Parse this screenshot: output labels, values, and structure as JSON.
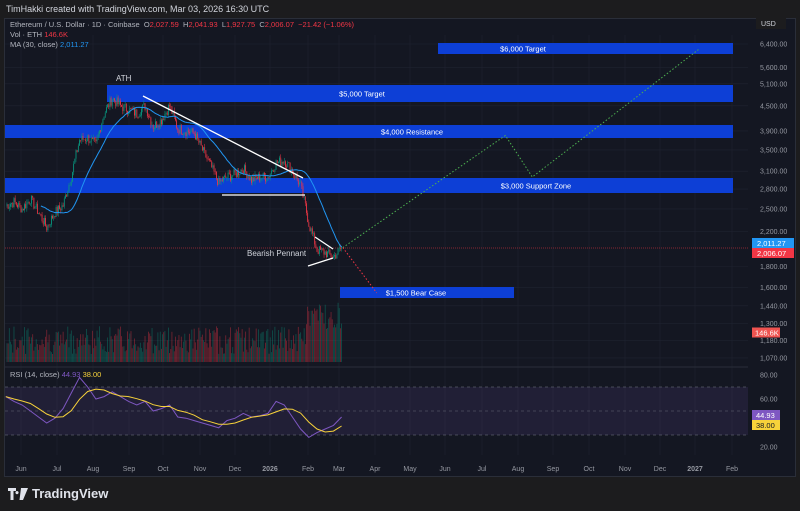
{
  "header": {
    "attribution": "TimHakki created with TradingView.com, Mar 03, 2026 16:30 UTC"
  },
  "legend": {
    "symbol": "Ethereum / U.S. Dollar · 1D · Coinbase",
    "open_label": "O",
    "open": "2,027.59",
    "high_label": "H",
    "high": "2,041.93",
    "low_label": "L",
    "low": "1,927.75",
    "close_label": "C",
    "close": "2,006.07",
    "change": "−21.42 (−1.06%)",
    "vol_label": "Vol · ETH",
    "vol": "146.6K",
    "ma_label": "MA (30, close)",
    "ma": "2,011.27",
    "rsi_label": "RSI (14, close)",
    "rsi": "44.93",
    "rsi_ma": "38.00"
  },
  "price_axis": {
    "currency": "USD",
    "ticks": [
      "6,400.00",
      "5,600.00",
      "5,100.00",
      "4,500.00",
      "3,900.00",
      "3,500.00",
      "3,100.00",
      "2,800.00",
      "2,500.00",
      "2,200.00",
      "1,800.00",
      "1,600.00",
      "1,440.00",
      "1,300.00",
      "1,180.00",
      "1,070.00"
    ],
    "ma_badge": "2,011.27",
    "price_badge": "2,006.07",
    "vol_badge": "146.6K"
  },
  "rsi_axis": {
    "ticks": [
      "80.00",
      "60.00",
      "20.00"
    ],
    "rsi_badge": "44.93",
    "rsi_ma_badge": "38.00"
  },
  "time_axis": {
    "ticks": [
      "Jun",
      "Jul",
      "Aug",
      "Sep",
      "Oct",
      "Nov",
      "Dec",
      "2026",
      "Feb",
      "Mar",
      "Apr",
      "May",
      "Jun",
      "Jul",
      "Aug",
      "Sep",
      "Oct",
      "Nov",
      "Dec",
      "2027",
      "Feb"
    ]
  },
  "annotations": {
    "ath": "ATH",
    "bearish_pennant": "Bearish Pennant",
    "zones": [
      "$6,000 Target",
      "$5,000 Target",
      "$4,000 Resistance",
      "$3,000 Support Zone",
      "$1,500 Bear Case"
    ]
  },
  "colors": {
    "zone": "#0d3fd6",
    "up": "#089981",
    "down": "#f23645",
    "ma": "#2196f3",
    "rsi": "#7e57c2",
    "rsi_ma": "#f7d23a",
    "projection": "#4caf50",
    "bear_projection": "#f23645"
  },
  "branding": {
    "logo": "TradingView"
  },
  "chart_data": {
    "type": "candlestick",
    "title": "Ethereum / U.S. Dollar · 1D · Coinbase",
    "y_scale": "log",
    "ylim": [
      1070,
      6400
    ],
    "grid": true,
    "weekly_dates": [
      "2025-05-19",
      "2025-05-26",
      "2025-06-02",
      "2025-06-09",
      "2025-06-16",
      "2025-06-23",
      "2025-06-30",
      "2025-07-07",
      "2025-07-14",
      "2025-07-21",
      "2025-07-28",
      "2025-08-04",
      "2025-08-11",
      "2025-08-18",
      "2025-08-25",
      "2025-09-01",
      "2025-09-08",
      "2025-09-15",
      "2025-09-22",
      "2025-09-29",
      "2025-10-06",
      "2025-10-13",
      "2025-10-20",
      "2025-10-27",
      "2025-11-03",
      "2025-11-10",
      "2025-11-17",
      "2025-11-24",
      "2025-12-01",
      "2025-12-08",
      "2025-12-15",
      "2025-12-22",
      "2025-12-29",
      "2026-01-05",
      "2026-01-12",
      "2026-01-19",
      "2026-01-26",
      "2026-02-02",
      "2026-02-09",
      "2026-02-16",
      "2026-02-23",
      "2026-03-02"
    ],
    "close": [
      2550,
      2600,
      2500,
      2650,
      2450,
      2250,
      2450,
      2550,
      3000,
      3700,
      3750,
      3600,
      4300,
      4700,
      4500,
      4400,
      4300,
      4500,
      4000,
      4150,
      4500,
      3950,
      3900,
      3850,
      3500,
      3200,
      2900,
      3000,
      3050,
      3150,
      2950,
      3000,
      3000,
      3250,
      3300,
      3100,
      2850,
      2300,
      1980,
      1950,
      1900,
      2006
    ],
    "rsi": [
      62,
      58,
      55,
      50,
      45,
      40,
      44,
      52,
      65,
      78,
      70,
      60,
      62,
      66,
      62,
      58,
      55,
      58,
      50,
      52,
      55,
      45,
      44,
      42,
      40,
      38,
      36,
      42,
      44,
      48,
      45,
      46,
      48,
      58,
      55,
      45,
      35,
      28,
      32,
      35,
      38,
      45
    ],
    "rsi_ylim": [
      10,
      85
    ],
    "rsi_bands": [
      70,
      50,
      30
    ],
    "zones": [
      {
        "label": "$6,000 Target",
        "price": 6000
      },
      {
        "label": "$5,000 Target",
        "price": 5000
      },
      {
        "label": "$4,000 Resistance",
        "price": 4000
      },
      {
        "label": "$3,000 Support Zone",
        "price": 3000
      },
      {
        "label": "$1,500 Bear Case",
        "price": 1500
      }
    ],
    "projection": [
      {
        "date": "2026-03-03",
        "price": 2006
      },
      {
        "date": "2026-07-20",
        "price": 3800
      },
      {
        "date": "2026-08-12",
        "price": 3000
      },
      {
        "date": "2027-01-01",
        "price": 6200
      }
    ],
    "bear_projection": [
      {
        "date": "2026-03-03",
        "price": 2006
      },
      {
        "date": "2026-04-01",
        "price": 1550
      }
    ]
  }
}
